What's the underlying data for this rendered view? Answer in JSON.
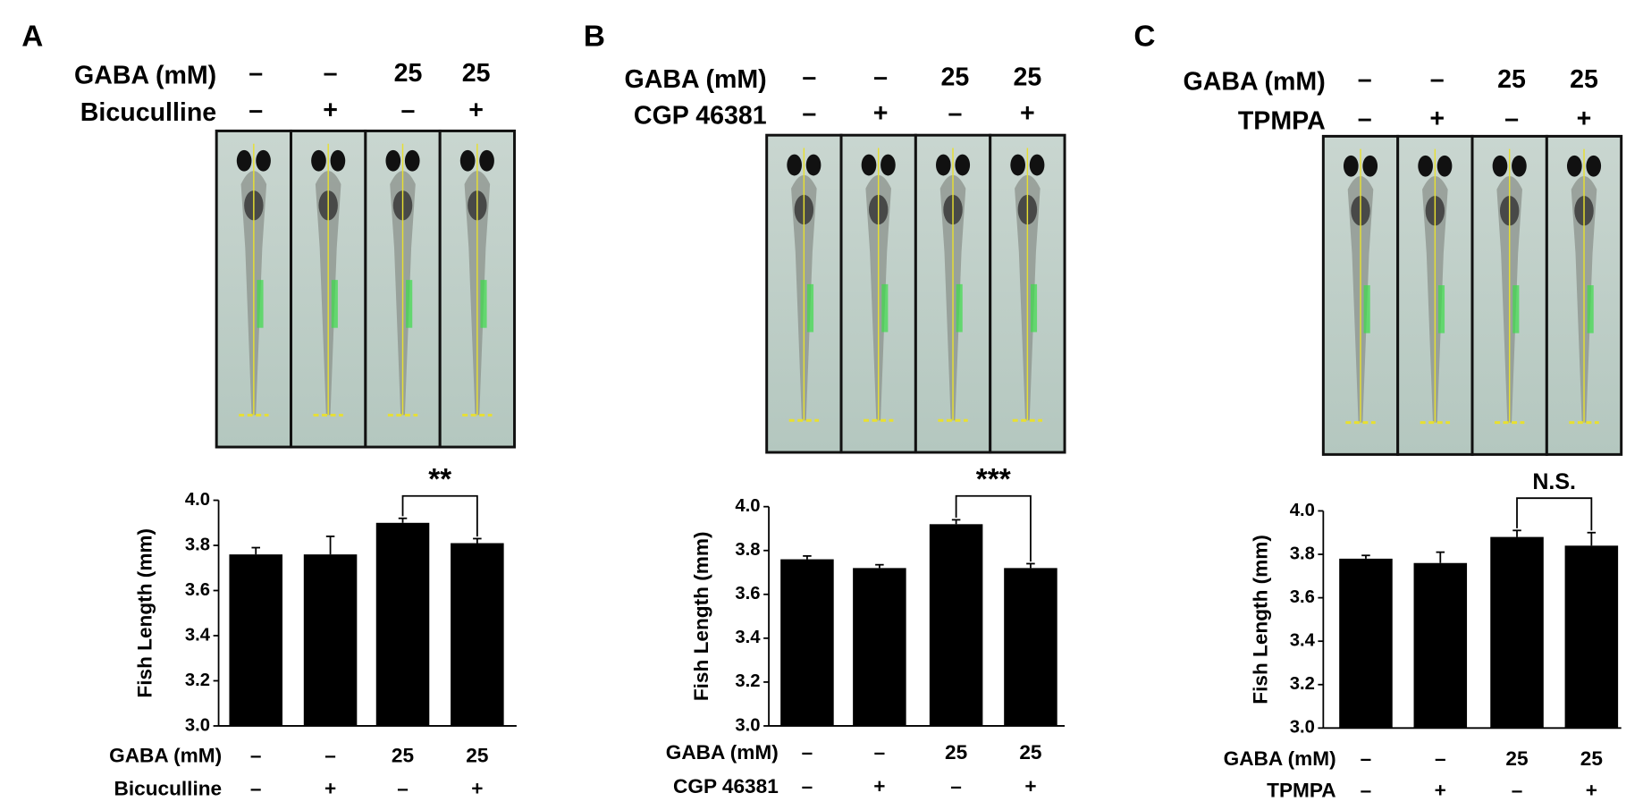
{
  "panels": [
    {
      "label": "A",
      "header": [
        {
          "name": "GABA (mM)",
          "labels": [
            "–",
            "–",
            "25",
            "25"
          ]
        },
        {
          "name": "Bicuculline",
          "labels": [
            "–",
            "+",
            "–",
            "+"
          ]
        }
      ]
    },
    {
      "label": "B",
      "header": [
        {
          "name": "GABA (mM)",
          "labels": [
            "–",
            "–",
            "25",
            "25"
          ]
        },
        {
          "name": "CGP 46381",
          "labels": [
            "–",
            "+",
            "–",
            "+"
          ]
        }
      ]
    },
    {
      "label": "C",
      "header": [
        {
          "name": "GABA (mM)",
          "labels": [
            "–",
            "–",
            "25",
            "25"
          ]
        },
        {
          "name": "TPMPA",
          "labels": [
            "–",
            "+",
            "–",
            "+"
          ]
        }
      ]
    }
  ],
  "chart_data": [
    {
      "type": "bar",
      "ylabel": "Fish Length (mm)",
      "color": "#000000",
      "category_rows": [
        {
          "name": "GABA (mM)",
          "labels": [
            "–",
            "–",
            "25",
            "25"
          ]
        },
        {
          "name": "Bicuculline",
          "labels": [
            "–",
            "+",
            "–",
            "+"
          ]
        }
      ],
      "values": [
        3.76,
        3.76,
        3.9,
        3.81
      ],
      "errors": [
        0.03,
        0.08,
        0.02,
        0.02
      ],
      "ylim": [
        3,
        4
      ],
      "yticks": [
        {
          "value": 3,
          "label": "3.0"
        },
        {
          "value": 3.2,
          "label": "3.2"
        },
        {
          "value": 3.4,
          "label": "3.4"
        },
        {
          "value": 3.6,
          "label": "3.6"
        },
        {
          "value": 3.8,
          "label": "3.8"
        },
        {
          "value": 4,
          "label": "4.0"
        }
      ],
      "annotation": "**"
    },
    {
      "type": "bar",
      "ylabel": "Fish Length (mm)",
      "color": "#000000",
      "category_rows": [
        {
          "name": "GABA (mM)",
          "labels": [
            "–",
            "–",
            "25",
            "25"
          ]
        },
        {
          "name": "CGP 46381",
          "labels": [
            "–",
            "+",
            "–",
            "+"
          ]
        }
      ],
      "values": [
        3.76,
        3.72,
        3.92,
        3.72
      ],
      "errors": [
        0.015,
        0.015,
        0.02,
        0.02
      ],
      "ylim": [
        3,
        4
      ],
      "yticks": [
        {
          "value": 3,
          "label": "3.0"
        },
        {
          "value": 3.2,
          "label": "3.2"
        },
        {
          "value": 3.4,
          "label": "3.4"
        },
        {
          "value": 3.6,
          "label": "3.6"
        },
        {
          "value": 3.8,
          "label": "3.8"
        },
        {
          "value": 4,
          "label": "4.0"
        }
      ],
      "annotation": "***"
    },
    {
      "type": "bar",
      "ylabel": "Fish Length (mm)",
      "color": "#000000",
      "category_rows": [
        {
          "name": "GABA (mM)",
          "labels": [
            "–",
            "–",
            "25",
            "25"
          ]
        },
        {
          "name": "TPMPA",
          "labels": [
            "–",
            "+",
            "–",
            "+"
          ]
        }
      ],
      "values": [
        3.78,
        3.76,
        3.88,
        3.84
      ],
      "errors": [
        0.015,
        0.05,
        0.03,
        0.06
      ],
      "ylim": [
        3,
        4
      ],
      "yticks": [
        {
          "value": 3,
          "label": "3.0"
        },
        {
          "value": 3.2,
          "label": "3.2"
        },
        {
          "value": 3.4,
          "label": "3.4"
        },
        {
          "value": 3.6,
          "label": "3.6"
        },
        {
          "value": 3.8,
          "label": "3.8"
        },
        {
          "value": 4,
          "label": "4.0"
        }
      ],
      "annotation": "N.S."
    }
  ]
}
